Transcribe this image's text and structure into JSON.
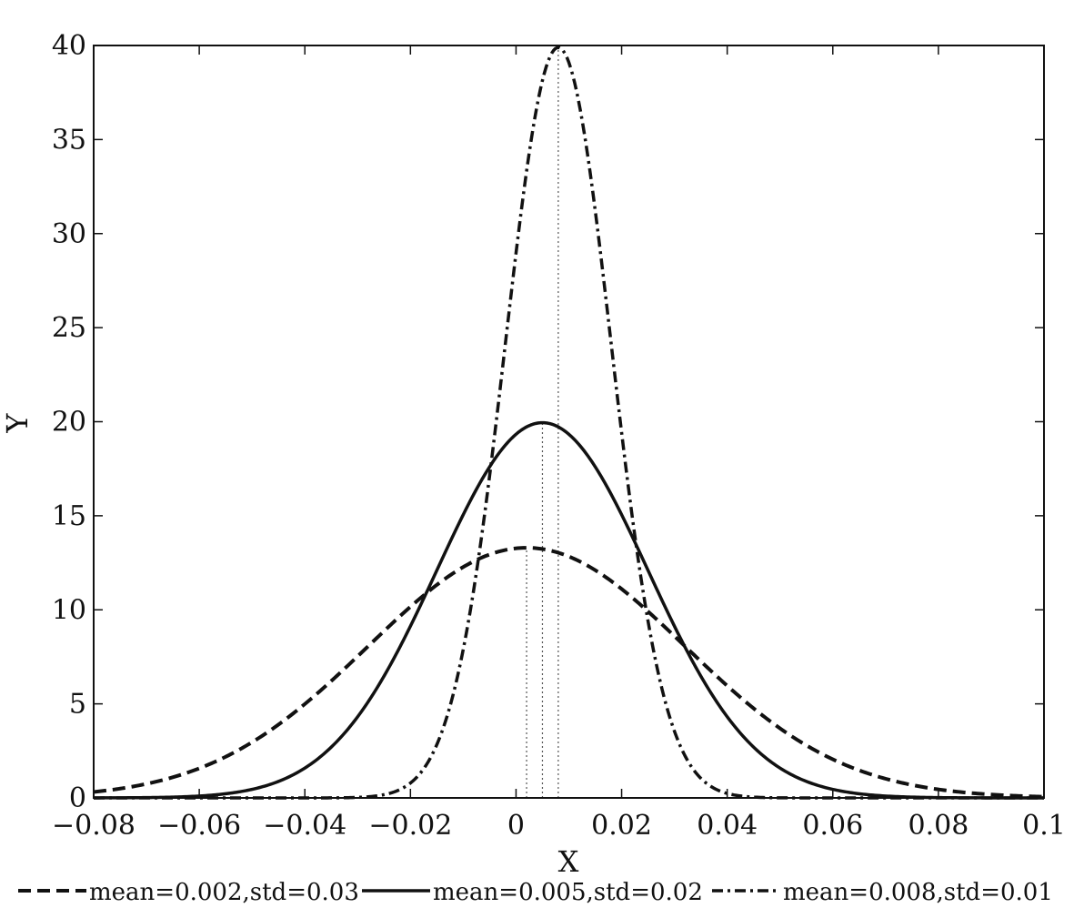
{
  "chart_data": {
    "type": "line",
    "title": "",
    "xlabel": "X",
    "ylabel": "Y",
    "xlim": [
      -0.08,
      0.1
    ],
    "ylim": [
      0,
      40
    ],
    "xticks": [
      -0.08,
      -0.06,
      -0.04,
      -0.02,
      0,
      0.02,
      0.04,
      0.06,
      0.08,
      0.1
    ],
    "xtick_labels": [
      "−0.08",
      "−0.06",
      "−0.04",
      "−0.02",
      "0",
      "0.02",
      "0.04",
      "0.06",
      "0.08",
      "0.1"
    ],
    "yticks": [
      0,
      5,
      10,
      15,
      20,
      25,
      30,
      35,
      40
    ],
    "ytick_labels": [
      "0",
      "5",
      "10",
      "15",
      "20",
      "25",
      "30",
      "35",
      "40"
    ],
    "grid": false,
    "legend_position": "bottom",
    "series": [
      {
        "name": "mean=0.002,std=0.03",
        "style": "dashed",
        "mean": 0.002,
        "std": 0.03,
        "peak_x": 0.002,
        "peak_y": 13.3
      },
      {
        "name": "mean=0.005,std=0.02",
        "style": "solid",
        "mean": 0.005,
        "std": 0.02,
        "peak_x": 0.005,
        "peak_y": 19.9
      },
      {
        "name": "mean=0.008,std=0.01",
        "style": "dashdot",
        "mean": 0.008,
        "std": 0.01,
        "peak_x": 0.008,
        "peak_y": 39.9
      }
    ],
    "line_color": "#111111"
  }
}
